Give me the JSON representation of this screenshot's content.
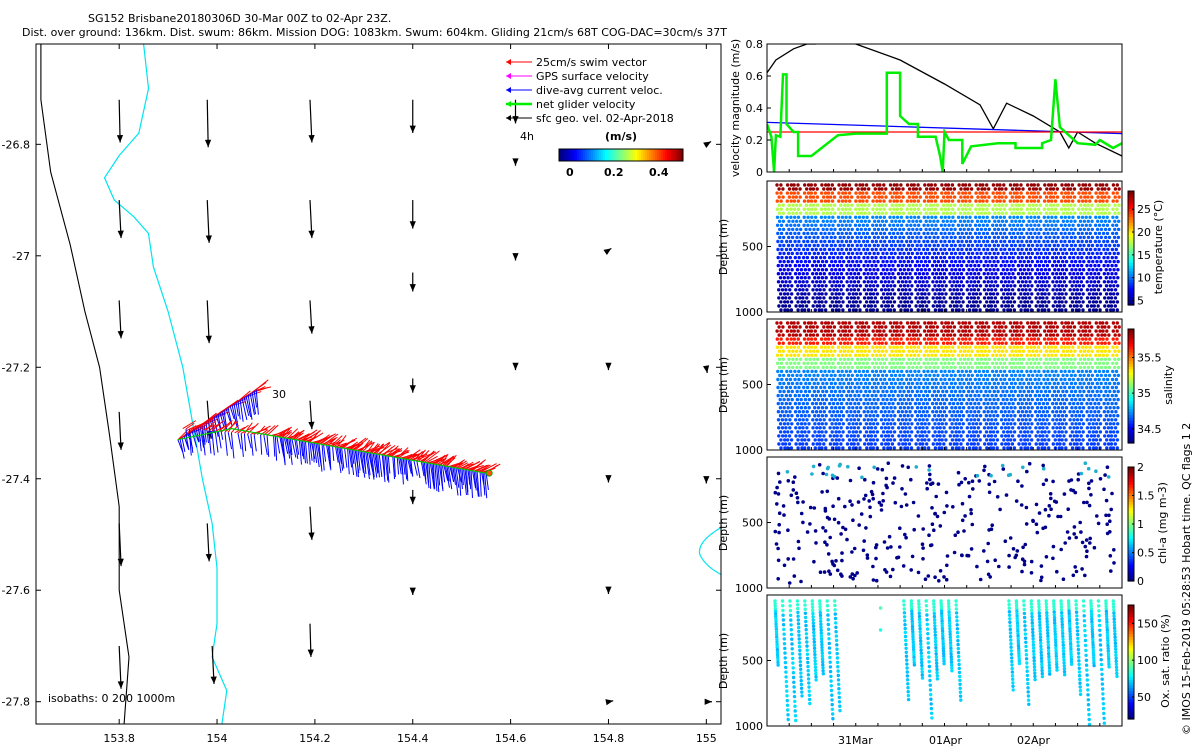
{
  "chart_data": [
    {
      "type": "map",
      "title_line1": "SG152 Brisbane20180306D 30-Mar 00Z to 02-Apr 23Z.",
      "title_line2": "Dist. over ground: 136km. Dist. swum: 86km. Mission DOG: 1083km. Swum: 604km. Gliding 21cm/s 68T COG-DAC=30cm/s 37T",
      "xlim": [
        153.63,
        155.03
      ],
      "ylim": [
        -27.84,
        -26.62
      ],
      "xticks": [
        153.8,
        154,
        154.2,
        154.4,
        154.6,
        154.8,
        155
      ],
      "xtick_labels": [
        "153.8",
        "154",
        "154.2",
        "154.4",
        "154.6",
        "154.8",
        "155"
      ],
      "yticks": [
        -26.8,
        -27,
        -27.2,
        -27.4,
        -27.6,
        -27.8
      ],
      "ytick_labels": [
        "-26.8",
        "-27",
        "-27.2",
        "-27.4",
        "-27.6",
        "-27.8"
      ],
      "legend": [
        {
          "label": "25cm/s swim vector",
          "color": "#ff0000"
        },
        {
          "label": "GPS surface velocity",
          "color": "#ff00ff"
        },
        {
          "label": "dive-avg current veloc.",
          "color": "#0000ff"
        },
        {
          "label": "net glider velocity",
          "color": "#00ee00"
        },
        {
          "label": "sfc geo. vel. 02-Apr-2018",
          "color": "#000000"
        }
      ],
      "colorbar_title": "(m/s)",
      "colorbar_ticks": [
        "0",
        "0.2",
        "0.4"
      ],
      "time_label": "4h",
      "track_label": "30",
      "isobath_label": "isobaths: 0   200  1000m",
      "track": {
        "start": [
          153.92,
          -27.33
        ],
        "mid": [
          154.03,
          -27.31
        ],
        "end": [
          154.55,
          -27.39
        ],
        "lead": [
          154.08,
          -27.24
        ]
      },
      "isobath_1000m": [
        [
          153.64,
          -26.62
        ],
        [
          153.64,
          -26.72
        ],
        [
          153.66,
          -26.85
        ],
        [
          153.7,
          -26.98
        ],
        [
          153.73,
          -27.1
        ],
        [
          153.76,
          -27.2
        ],
        [
          153.78,
          -27.32
        ],
        [
          153.8,
          -27.45
        ],
        [
          153.8,
          -27.6
        ],
        [
          153.82,
          -27.72
        ],
        [
          153.81,
          -27.84
        ]
      ],
      "coastline": [
        [
          153.85,
          -26.62
        ],
        [
          153.86,
          -26.7
        ],
        [
          153.84,
          -26.78
        ],
        [
          153.8,
          -26.82
        ],
        [
          153.77,
          -26.86
        ],
        [
          153.79,
          -26.9
        ],
        [
          153.83,
          -26.93
        ],
        [
          153.86,
          -26.96
        ],
        [
          153.87,
          -27.02
        ],
        [
          153.9,
          -27.1
        ],
        [
          153.93,
          -27.2
        ],
        [
          153.95,
          -27.3
        ],
        [
          153.97,
          -27.4
        ],
        [
          153.99,
          -27.48
        ],
        [
          154,
          -27.56
        ],
        [
          154,
          -27.66
        ],
        [
          153.99,
          -27.72
        ],
        [
          154.02,
          -27.78
        ],
        [
          154.01,
          -27.84
        ]
      ],
      "geo_vectors": [
        {
          "lon": 153.8,
          "lat": -26.72,
          "u": 0.01,
          "v": -0.45
        },
        {
          "lon": 153.98,
          "lat": -26.72,
          "u": 0.01,
          "v": -0.5
        },
        {
          "lon": 154.19,
          "lat": -26.72,
          "u": 0.02,
          "v": -0.45
        },
        {
          "lon": 154.4,
          "lat": -26.72,
          "u": 0.0,
          "v": -0.35
        },
        {
          "lon": 154.61,
          "lat": -26.72,
          "u": 0.0,
          "v": -0.25
        },
        {
          "lon": 153.8,
          "lat": -26.9,
          "u": 0.02,
          "v": -0.4
        },
        {
          "lon": 153.98,
          "lat": -26.9,
          "u": 0.02,
          "v": -0.45
        },
        {
          "lon": 154.19,
          "lat": -26.9,
          "u": 0.02,
          "v": -0.4
        },
        {
          "lon": 154.4,
          "lat": -26.9,
          "u": 0.0,
          "v": -0.3
        },
        {
          "lon": 154.61,
          "lat": -26.83,
          "u": 0.0,
          "v": -0.05
        },
        {
          "lon": 155.0,
          "lat": -26.8,
          "u": 0.05,
          "v": 0.03
        },
        {
          "lon": 153.8,
          "lat": -27.08,
          "u": 0.02,
          "v": -0.4
        },
        {
          "lon": 153.98,
          "lat": -27.08,
          "u": 0.02,
          "v": -0.45
        },
        {
          "lon": 154.19,
          "lat": -27.08,
          "u": 0.02,
          "v": -0.35
        },
        {
          "lon": 154.4,
          "lat": -27.03,
          "u": 0.0,
          "v": -0.2
        },
        {
          "lon": 154.61,
          "lat": -27.0,
          "u": 0.0,
          "v": -0.05
        },
        {
          "lon": 154.8,
          "lat": -26.99,
          "u": 0.03,
          "v": 0.02
        },
        {
          "lon": 153.8,
          "lat": -27.28,
          "u": 0.02,
          "v": -0.4
        },
        {
          "lon": 153.98,
          "lat": -27.26,
          "u": 0.03,
          "v": -0.4
        },
        {
          "lon": 154.19,
          "lat": -27.26,
          "u": 0.02,
          "v": -0.3
        },
        {
          "lon": 154.4,
          "lat": -27.22,
          "u": 0.0,
          "v": -0.15
        },
        {
          "lon": 154.61,
          "lat": -27.2,
          "u": 0.0,
          "v": -0.03
        },
        {
          "lon": 154.8,
          "lat": -27.2,
          "u": 0.0,
          "v": -0.03
        },
        {
          "lon": 155.0,
          "lat": -27.2,
          "u": 0.01,
          "v": -0.06
        },
        {
          "lon": 153.8,
          "lat": -27.48,
          "u": 0.02,
          "v": -0.45
        },
        {
          "lon": 153.98,
          "lat": -27.48,
          "u": 0.02,
          "v": -0.4
        },
        {
          "lon": 154.19,
          "lat": -27.45,
          "u": 0.02,
          "v": -0.35
        },
        {
          "lon": 154.4,
          "lat": -27.42,
          "u": 0.0,
          "v": -0.15
        },
        {
          "lon": 154.8,
          "lat": -27.4,
          "u": 0.0,
          "v": -0.04
        },
        {
          "lon": 155.0,
          "lat": -27.4,
          "u": 0.0,
          "v": -0.05
        },
        {
          "lon": 153.8,
          "lat": -27.7,
          "u": 0.02,
          "v": -0.45
        },
        {
          "lon": 153.99,
          "lat": -27.7,
          "u": 0.02,
          "v": -0.4
        },
        {
          "lon": 154.19,
          "lat": -27.66,
          "u": 0.01,
          "v": -0.35
        },
        {
          "lon": 154.4,
          "lat": -27.6,
          "u": 0.0,
          "v": -0.05
        },
        {
          "lon": 154.8,
          "lat": -27.6,
          "u": 0.0,
          "v": -0.04
        },
        {
          "lon": 154.8,
          "lat": -27.8,
          "u": 0.05,
          "v": 0.01
        },
        {
          "lon": 155.0,
          "lat": -27.8,
          "u": 0.06,
          "v": 0.0
        }
      ]
    },
    {
      "type": "line",
      "ylabel": "velocity magnitude (m/s)",
      "ylim": [
        0,
        0.8
      ],
      "yticks": [
        0,
        0.2,
        0.4,
        0.6,
        0.8
      ],
      "ytick_labels": [
        "0",
        "0.2",
        "0.4",
        "0.6",
        "0.8"
      ],
      "x_range_days": [
        0,
        4
      ],
      "series": [
        {
          "name": "sfc geo. vel.",
          "color": "#000000",
          "points": [
            [
              0,
              0.62
            ],
            [
              0.1,
              0.7
            ],
            [
              0.3,
              0.77
            ],
            [
              0.45,
              0.8
            ],
            [
              0.55,
              0.8
            ],
            [
              0.65,
              0.85
            ],
            [
              0.8,
              0.85
            ],
            [
              1.0,
              0.8
            ],
            [
              1.5,
              0.7
            ],
            [
              2.0,
              0.55
            ],
            [
              2.4,
              0.42
            ],
            [
              2.55,
              0.27
            ],
            [
              2.7,
              0.43
            ],
            [
              3.0,
              0.35
            ],
            [
              3.3,
              0.25
            ],
            [
              3.4,
              0.15
            ],
            [
              3.5,
              0.25
            ],
            [
              3.7,
              0.18
            ],
            [
              4.0,
              0.1
            ]
          ]
        },
        {
          "name": "dive-avg current veloc.",
          "color": "#0000ff",
          "points": [
            [
              0,
              0.31
            ],
            [
              4,
              0.24
            ]
          ]
        },
        {
          "name": "25cm/s swim vector",
          "color": "#ff0000",
          "points": [
            [
              0,
              0.25
            ],
            [
              4,
              0.25
            ]
          ]
        },
        {
          "name": "net glider velocity",
          "color": "#00ee00",
          "points": [
            [
              0,
              0.3
            ],
            [
              0.05,
              0.22
            ],
            [
              0.08,
              0.0
            ],
            [
              0.1,
              0.23
            ],
            [
              0.15,
              0.22
            ],
            [
              0.18,
              0.61
            ],
            [
              0.22,
              0.61
            ],
            [
              0.22,
              0.3
            ],
            [
              0.3,
              0.25
            ],
            [
              0.35,
              0.25
            ],
            [
              0.35,
              0.1
            ],
            [
              0.5,
              0.1
            ],
            [
              0.8,
              0.23
            ],
            [
              1.0,
              0.24
            ],
            [
              1.35,
              0.24
            ],
            [
              1.35,
              0.62
            ],
            [
              1.5,
              0.62
            ],
            [
              1.5,
              0.35
            ],
            [
              1.6,
              0.3
            ],
            [
              1.7,
              0.3
            ],
            [
              1.7,
              0.22
            ],
            [
              1.9,
              0.22
            ],
            [
              1.95,
              0.1
            ],
            [
              1.98,
              0.0
            ],
            [
              2.0,
              0.25
            ],
            [
              2.05,
              0.2
            ],
            [
              2.2,
              0.2
            ],
            [
              2.2,
              0.05
            ],
            [
              2.3,
              0.16
            ],
            [
              2.6,
              0.18
            ],
            [
              2.8,
              0.18
            ],
            [
              2.8,
              0.15
            ],
            [
              3.1,
              0.15
            ],
            [
              3.1,
              0.18
            ],
            [
              3.2,
              0.2
            ],
            [
              3.25,
              0.58
            ],
            [
              3.3,
              0.28
            ],
            [
              3.5,
              0.18
            ],
            [
              3.7,
              0.17
            ],
            [
              3.75,
              0.2
            ],
            [
              3.9,
              0.15
            ],
            [
              4.0,
              0.18
            ]
          ]
        }
      ]
    },
    {
      "type": "scatter",
      "ylabel": "Depth (m)",
      "ylim": [
        1000,
        0
      ],
      "yticks": [
        500,
        1000
      ],
      "ytick_labels": [
        "500",
        "1000"
      ],
      "cbar_label": "temperature (°C)",
      "cbar_ticks": [
        "5",
        "10",
        "15",
        "20",
        "25"
      ],
      "cbar_range": [
        4,
        29
      ],
      "n_profiles": 40,
      "profile_top_m": 10
    },
    {
      "type": "scatter",
      "ylabel": "Depth (m)",
      "ylim": [
        1000,
        0
      ],
      "yticks": [
        500,
        1000
      ],
      "ytick_labels": [
        "500",
        "1000"
      ],
      "cbar_label": "salinity",
      "cbar_ticks": [
        "34.5",
        "35",
        "35.5"
      ],
      "cbar_range": [
        34.3,
        35.9
      ],
      "n_profiles": 40,
      "profile_top_m": 10
    },
    {
      "type": "scatter",
      "ylabel": "Depth (m)",
      "ylim": [
        1000,
        0
      ],
      "yticks": [
        500,
        1000
      ],
      "ytick_labels": [
        "500",
        "1000"
      ],
      "cbar_label": "chl-a (mg m-3)",
      "cbar_ticks": [
        "0",
        "0.5",
        "1",
        "1.5",
        "2"
      ],
      "cbar_range": [
        0,
        2
      ]
    },
    {
      "type": "scatter",
      "ylabel": "Depth (m)",
      "ylim": [
        1000,
        0
      ],
      "yticks": [
        500,
        1000
      ],
      "ytick_labels": [
        "500",
        "1000"
      ],
      "cbar_label": "Ox. sat. ratio (%)",
      "cbar_ticks": [
        "50",
        "100",
        "150"
      ],
      "cbar_range": [
        20,
        175
      ],
      "xtick_labels": [
        "31Mar",
        "01Apr",
        "02Apr"
      ],
      "xtick_days": [
        0.8,
        1.8,
        2.8
      ]
    }
  ],
  "footer": {
    "imos_label": "© IMOS 15-Feb-2019 05:28:53 Hobart time. QC flags 1  2"
  }
}
